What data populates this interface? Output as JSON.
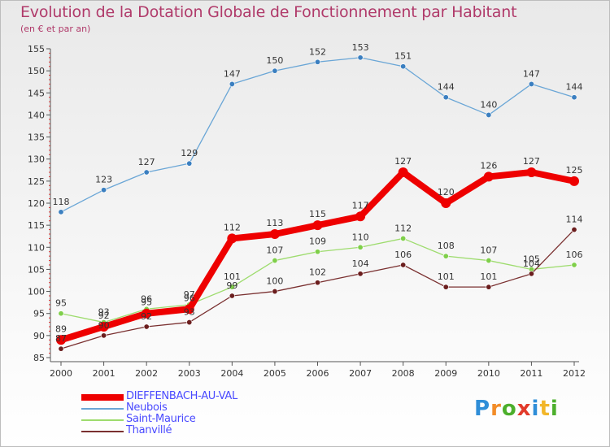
{
  "title": "Evolution de la Dotation Globale de Fonctionnement par Habitant",
  "subtitle": "(en € et par an)",
  "logo": {
    "letters": [
      "P",
      "r",
      "o",
      "x",
      "i",
      "t",
      "i"
    ],
    "colors": [
      "#2f8ed8",
      "#f28c28",
      "#4caf2c",
      "#e23a2a",
      "#2f8ed8",
      "#f2b629",
      "#4caf2c"
    ]
  },
  "chart_data": {
    "type": "line",
    "title": "Evolution de la Dotation Globale de Fonctionnement par Habitant",
    "subtitle": "(en € et par an)",
    "xlabel": "",
    "ylabel": "",
    "x": [
      "2000",
      "2001",
      "2002",
      "2003",
      "2004",
      "2005",
      "2006",
      "2007",
      "2008",
      "2009",
      "2010",
      "2011",
      "2012"
    ],
    "ylim": [
      85,
      155
    ],
    "yticks": [
      85,
      90,
      95,
      100,
      105,
      110,
      115,
      120,
      125,
      130,
      135,
      140,
      145,
      150,
      155
    ],
    "grid": false,
    "legend_position": "bottom-left",
    "series": [
      {
        "name": "DIEFFENBACH-AU-VAL",
        "values": [
          89,
          92,
          95,
          96,
          112,
          113,
          115,
          117,
          127,
          120,
          126,
          127,
          125
        ],
        "color": "#ee0000",
        "marker": "#ee0000"
      },
      {
        "name": "Neubois",
        "values": [
          118,
          123,
          127,
          129,
          147,
          150,
          152,
          153,
          151,
          144,
          140,
          147,
          144
        ],
        "color": "#6aa6d6",
        "marker": "#3b7fc0"
      },
      {
        "name": "Saint-Maurice",
        "values": [
          95,
          93,
          96,
          97,
          101,
          107,
          109,
          110,
          112,
          108,
          107,
          105,
          106
        ],
        "color": "#9edc6e",
        "marker": "#7fcf4a"
      },
      {
        "name": "Thanvillé",
        "values": [
          87,
          90,
          92,
          93,
          99,
          100,
          102,
          104,
          106,
          101,
          101,
          104,
          114
        ],
        "color": "#7a3030",
        "marker": "#6b1e1e"
      }
    ]
  }
}
